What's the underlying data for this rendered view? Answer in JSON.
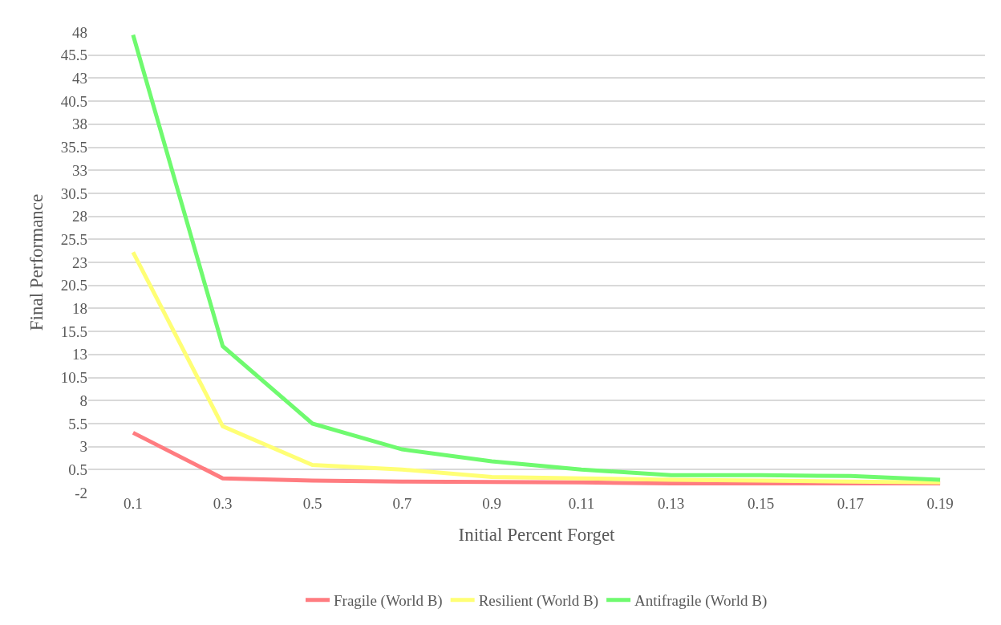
{
  "chart_data": {
    "type": "line",
    "xlabel": "Initial Percent Forget",
    "ylabel": "Final Performance",
    "categories": [
      "0.1",
      "0.3",
      "0.5",
      "0.7",
      "0.9",
      "0.11",
      "0.13",
      "0.15",
      "0.17",
      "0.19"
    ],
    "series": [
      {
        "name": "Fragile (World B)",
        "color": "#ff7c80",
        "values": [
          4.5,
          -0.45,
          -0.7,
          -0.8,
          -0.85,
          -0.9,
          -1.0,
          -1.0,
          -1.0,
          -1.0
        ]
      },
      {
        "name": "Resilient (World B)",
        "color": "#ffff75",
        "values": [
          24.1,
          5.2,
          1.0,
          0.5,
          -0.3,
          -0.45,
          -0.6,
          -0.7,
          -0.8,
          -0.9
        ]
      },
      {
        "name": "Antifragile (World B)",
        "color": "#6ffa6f",
        "values": [
          47.7,
          13.9,
          5.5,
          2.7,
          1.4,
          0.5,
          -0.1,
          -0.1,
          -0.2,
          -0.6
        ]
      }
    ],
    "ylim": [
      -2,
      48
    ],
    "yticks": [
      -2,
      0.5,
      3,
      5.5,
      8,
      10.5,
      13,
      15.5,
      18,
      20.5,
      23,
      25.5,
      28,
      30.5,
      33,
      35.5,
      38,
      40.5,
      43,
      45.5,
      48
    ],
    "grid": "y",
    "legend": "bottom",
    "marker": "none",
    "line_style": "solid"
  }
}
